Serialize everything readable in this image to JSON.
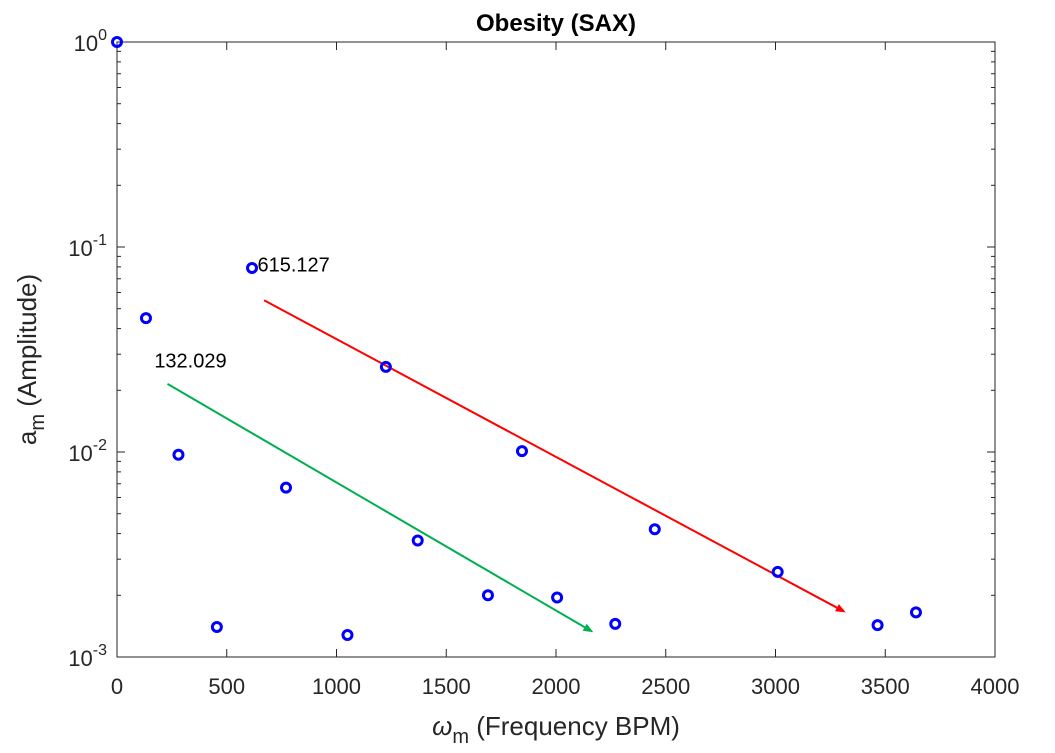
{
  "chart_data": {
    "type": "scatter",
    "title": "Obesity (SAX)",
    "xlabel": {
      "symbol": "ω",
      "sub": "m",
      "text": " (Frequency BPM)"
    },
    "ylabel": {
      "symbol": "a",
      "sub": "m",
      "text": " (Amplitude)"
    },
    "xlim": [
      0,
      4000
    ],
    "ylim": [
      0.001,
      1
    ],
    "yscale": "log",
    "xticks": [
      0,
      500,
      1000,
      1500,
      2000,
      2500,
      3000,
      3500,
      4000
    ],
    "xtick_labels": [
      "0",
      "500",
      "1000",
      "1500",
      "2000",
      "2500",
      "3000",
      "3500",
      "4000"
    ],
    "yticks": [
      {
        "value": 1,
        "base": "10",
        "exp": "0"
      },
      {
        "value": 0.1,
        "base": "10",
        "exp": "-1"
      },
      {
        "value": 0.01,
        "base": "10",
        "exp": "-2"
      },
      {
        "value": 0.001,
        "base": "10",
        "exp": "-3"
      }
    ],
    "marker_color": "#0000ff",
    "points": [
      {
        "x": 0,
        "y": 1.0
      },
      {
        "x": 132.029,
        "y": 0.045
      },
      {
        "x": 280,
        "y": 0.0097
      },
      {
        "x": 455,
        "y": 0.0014
      },
      {
        "x": 615.127,
        "y": 0.079
      },
      {
        "x": 770,
        "y": 0.0067
      },
      {
        "x": 1050,
        "y": 0.00128
      },
      {
        "x": 1225,
        "y": 0.026
      },
      {
        "x": 1370,
        "y": 0.0037
      },
      {
        "x": 1690,
        "y": 0.002
      },
      {
        "x": 1845,
        "y": 0.0101
      },
      {
        "x": 2005,
        "y": 0.00195
      },
      {
        "x": 2270,
        "y": 0.00145
      },
      {
        "x": 2450,
        "y": 0.0042
      },
      {
        "x": 3010,
        "y": 0.0026
      },
      {
        "x": 3465,
        "y": 0.00143
      },
      {
        "x": 3640,
        "y": 0.00165
      }
    ],
    "annotations": [
      {
        "text": "615.127",
        "x": 640,
        "y": 0.082,
        "anchor": "start"
      },
      {
        "text": "132.029",
        "x": 170,
        "y": 0.028,
        "anchor": "start"
      }
    ],
    "arrows": [
      {
        "name": "red-trend-arrow",
        "color": "#ff0000",
        "from": {
          "x": 670,
          "y": 0.055
        },
        "to": {
          "x": 3320,
          "y": 0.00165
        }
      },
      {
        "name": "green-trend-arrow",
        "color": "#00b050",
        "from": {
          "x": 230,
          "y": 0.0215
        },
        "to": {
          "x": 2170,
          "y": 0.00132
        }
      }
    ]
  }
}
